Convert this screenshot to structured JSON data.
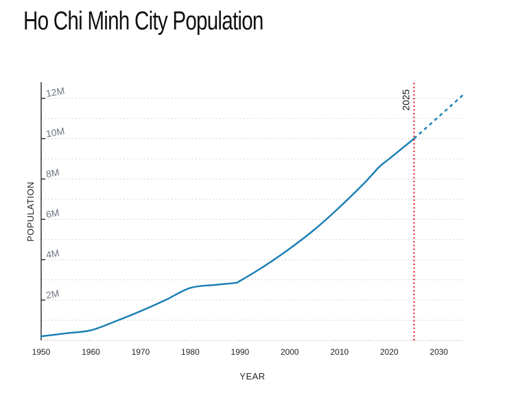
{
  "page": {
    "title": "Ho Chi Minh City Population"
  },
  "chart_data": {
    "type": "line",
    "title": "Ho Chi Minh City Population",
    "xlabel": "YEAR",
    "ylabel": "POPULATION",
    "xlim": [
      1950,
      2035
    ],
    "ylim": [
      0,
      12800000
    ],
    "x_ticks": [
      1950,
      1960,
      1970,
      1980,
      1990,
      2000,
      2010,
      2020,
      2030
    ],
    "y_ticks": [
      {
        "value": 2000000,
        "label": "2M"
      },
      {
        "value": 4000000,
        "label": "4M"
      },
      {
        "value": 6000000,
        "label": "6M"
      },
      {
        "value": 8000000,
        "label": "8M"
      },
      {
        "value": 10000000,
        "label": "10M"
      },
      {
        "value": 12000000,
        "label": "12M"
      }
    ],
    "grid": true,
    "series": [
      {
        "color": "#1a7fb5",
        "style": "solid",
        "x": [
          1950,
          1955,
          1960,
          1965,
          1970,
          1975,
          1980,
          1985,
          1989,
          1990,
          1995,
          2000,
          2005,
          2010,
          2015,
          2018,
          2020,
          2025
        ],
        "values": [
          200000,
          350000,
          500000,
          950000,
          1450000,
          2000000,
          2600000,
          2750000,
          2850000,
          2950000,
          3700000,
          4550000,
          5500000,
          6600000,
          7800000,
          8600000,
          9000000,
          10000000
        ]
      },
      {
        "color": "#1a7fb5",
        "style": "dashed",
        "x": [
          2025,
          2030,
          2035
        ],
        "values": [
          10000000,
          11100000,
          12200000
        ]
      }
    ],
    "annotations": [
      {
        "x": 2025,
        "label": "2025",
        "color": "#e53935",
        "style": "dotted"
      }
    ]
  }
}
